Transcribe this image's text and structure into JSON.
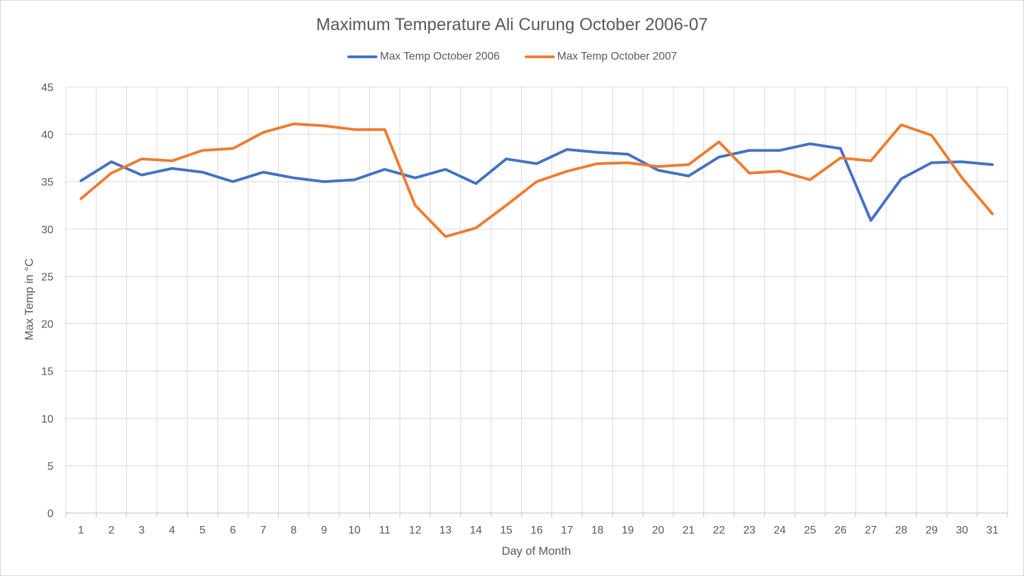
{
  "chart_data": {
    "type": "line",
    "title": "Maximum Temperature  Ali Curung October 2006-07",
    "xlabel": "Day of Month",
    "ylabel": "Max Temp in °C",
    "ylim": [
      0,
      45
    ],
    "yticks": [
      0,
      5,
      10,
      15,
      20,
      25,
      30,
      35,
      40,
      45
    ],
    "grid": true,
    "legend_position": "top",
    "categories": [
      "1",
      "2",
      "3",
      "4",
      "5",
      "6",
      "7",
      "8",
      "9",
      "10",
      "11",
      "12",
      "13",
      "14",
      "15",
      "16",
      "17",
      "18",
      "19",
      "20",
      "21",
      "22",
      "23",
      "24",
      "25",
      "26",
      "27",
      "28",
      "29",
      "30",
      "31"
    ],
    "series": [
      {
        "name": "Max Temp October 2006",
        "color": "#4472c4",
        "values": [
          35.1,
          37.1,
          35.7,
          36.4,
          36.0,
          35.0,
          36.0,
          35.4,
          35.0,
          35.2,
          36.3,
          35.4,
          36.3,
          34.8,
          37.4,
          36.9,
          38.4,
          38.1,
          37.9,
          36.2,
          35.6,
          37.6,
          38.3,
          38.3,
          39.0,
          38.5,
          30.9,
          35.3,
          37.0,
          37.1,
          36.8
        ]
      },
      {
        "name": "Max Temp October 2007",
        "color": "#ed7d31",
        "values": [
          33.2,
          35.9,
          37.4,
          37.2,
          38.3,
          38.5,
          40.2,
          41.1,
          40.9,
          40.5,
          40.5,
          32.5,
          29.2,
          30.1,
          32.5,
          35.0,
          36.1,
          36.9,
          37.0,
          36.6,
          36.8,
          39.2,
          35.9,
          36.1,
          35.2,
          37.5,
          37.2,
          41.0,
          39.9,
          35.4,
          31.6
        ]
      }
    ]
  }
}
